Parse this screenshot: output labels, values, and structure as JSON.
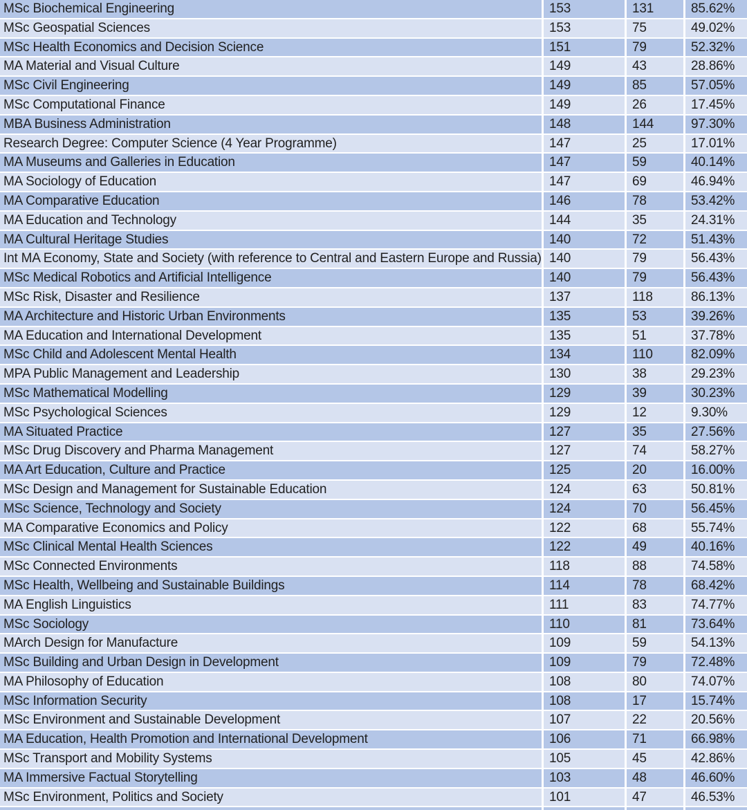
{
  "colors": {
    "row_band_dark": "#b4c6e7",
    "row_band_light": "#d9e1f2",
    "gridline": "#ffffff",
    "text": "#212121"
  },
  "table": {
    "rows": [
      {
        "cells": [
          "MSc Biochemical Engineering",
          "153",
          "131",
          "85.62%"
        ]
      },
      {
        "cells": [
          "MSc Geospatial Sciences",
          "153",
          "75",
          "49.02%"
        ]
      },
      {
        "cells": [
          "MSc Health Economics and Decision Science",
          "151",
          "79",
          "52.32%"
        ]
      },
      {
        "cells": [
          "MA Material and Visual Culture",
          "149",
          "43",
          "28.86%"
        ]
      },
      {
        "cells": [
          "MSc Civil Engineering",
          "149",
          "85",
          "57.05%"
        ]
      },
      {
        "cells": [
          "MSc Computational Finance",
          "149",
          "26",
          "17.45%"
        ]
      },
      {
        "cells": [
          "MBA Business Administration",
          "148",
          "144",
          "97.30%"
        ]
      },
      {
        "cells": [
          "Research Degree: Computer Science (4 Year Programme)",
          "147",
          "25",
          "17.01%"
        ]
      },
      {
        "cells": [
          "MA Museums and Galleries in Education",
          "147",
          "59",
          "40.14%"
        ]
      },
      {
        "cells": [
          "MA Sociology of Education",
          "147",
          "69",
          "46.94%"
        ]
      },
      {
        "cells": [
          "MA Comparative Education",
          "146",
          "78",
          "53.42%"
        ]
      },
      {
        "cells": [
          "MA Education and Technology",
          "144",
          "35",
          "24.31%"
        ]
      },
      {
        "cells": [
          "MA Cultural Heritage Studies",
          "140",
          "72",
          "51.43%"
        ]
      },
      {
        "cells": [
          "Int MA Economy, State and Society (with reference to Central and Eastern Europe and Russia)",
          "140",
          "79",
          "56.43%"
        ]
      },
      {
        "cells": [
          "MSc Medical Robotics and Artificial Intelligence",
          "140",
          "79",
          "56.43%"
        ]
      },
      {
        "cells": [
          "MSc Risk, Disaster and Resilience",
          "137",
          "118",
          "86.13%"
        ]
      },
      {
        "cells": [
          "MA Architecture and Historic Urban Environments",
          "135",
          "53",
          "39.26%"
        ]
      },
      {
        "cells": [
          "MA Education and International Development",
          "135",
          "51",
          "37.78%"
        ]
      },
      {
        "cells": [
          "MSc Child and Adolescent Mental Health",
          "134",
          "110",
          "82.09%"
        ]
      },
      {
        "cells": [
          "MPA Public Management and Leadership",
          "130",
          "38",
          "29.23%"
        ]
      },
      {
        "cells": [
          "MSc Mathematical Modelling",
          "129",
          "39",
          "30.23%"
        ]
      },
      {
        "cells": [
          "MSc Psychological Sciences",
          "129",
          "12",
          "9.30%"
        ]
      },
      {
        "cells": [
          "MA Situated Practice",
          "127",
          "35",
          "27.56%"
        ]
      },
      {
        "cells": [
          "MSc Drug Discovery and Pharma Management",
          "127",
          "74",
          "58.27%"
        ]
      },
      {
        "cells": [
          "MA Art Education, Culture and Practice",
          "125",
          "20",
          "16.00%"
        ]
      },
      {
        "cells": [
          "MSc Design and Management for Sustainable Education",
          "124",
          "63",
          "50.81%"
        ]
      },
      {
        "cells": [
          "MSc Science, Technology and Society",
          "124",
          "70",
          "56.45%"
        ]
      },
      {
        "cells": [
          "MA Comparative Economics and Policy",
          "122",
          "68",
          "55.74%"
        ]
      },
      {
        "cells": [
          "MSc Clinical Mental Health Sciences",
          "122",
          "49",
          "40.16%"
        ]
      },
      {
        "cells": [
          "MSc Connected Environments",
          "118",
          "88",
          "74.58%"
        ]
      },
      {
        "cells": [
          "MSc Health, Wellbeing and Sustainable Buildings",
          "114",
          "78",
          "68.42%"
        ]
      },
      {
        "cells": [
          "MA English Linguistics",
          "111",
          "83",
          "74.77%"
        ]
      },
      {
        "cells": [
          "MSc Sociology",
          "110",
          "81",
          "73.64%"
        ]
      },
      {
        "cells": [
          "MArch Design for Manufacture",
          "109",
          "59",
          "54.13%"
        ]
      },
      {
        "cells": [
          "MSc Building and Urban Design in Development",
          "109",
          "79",
          "72.48%"
        ]
      },
      {
        "cells": [
          "MA Philosophy of Education",
          "108",
          "80",
          "74.07%"
        ]
      },
      {
        "cells": [
          "MSc Information Security",
          "108",
          "17",
          "15.74%"
        ]
      },
      {
        "cells": [
          "MSc Environment and Sustainable Development",
          "107",
          "22",
          "20.56%"
        ]
      },
      {
        "cells": [
          "MA Education, Health Promotion and International Development",
          "106",
          "71",
          "66.98%"
        ]
      },
      {
        "cells": [
          "MSc Transport and Mobility Systems",
          "105",
          "45",
          "42.86%"
        ]
      },
      {
        "cells": [
          "MA Immersive Factual Storytelling",
          "103",
          "48",
          "46.60%"
        ]
      },
      {
        "cells": [
          "MSc Environment, Politics and Society",
          "101",
          "47",
          "46.53%"
        ]
      }
    ]
  }
}
